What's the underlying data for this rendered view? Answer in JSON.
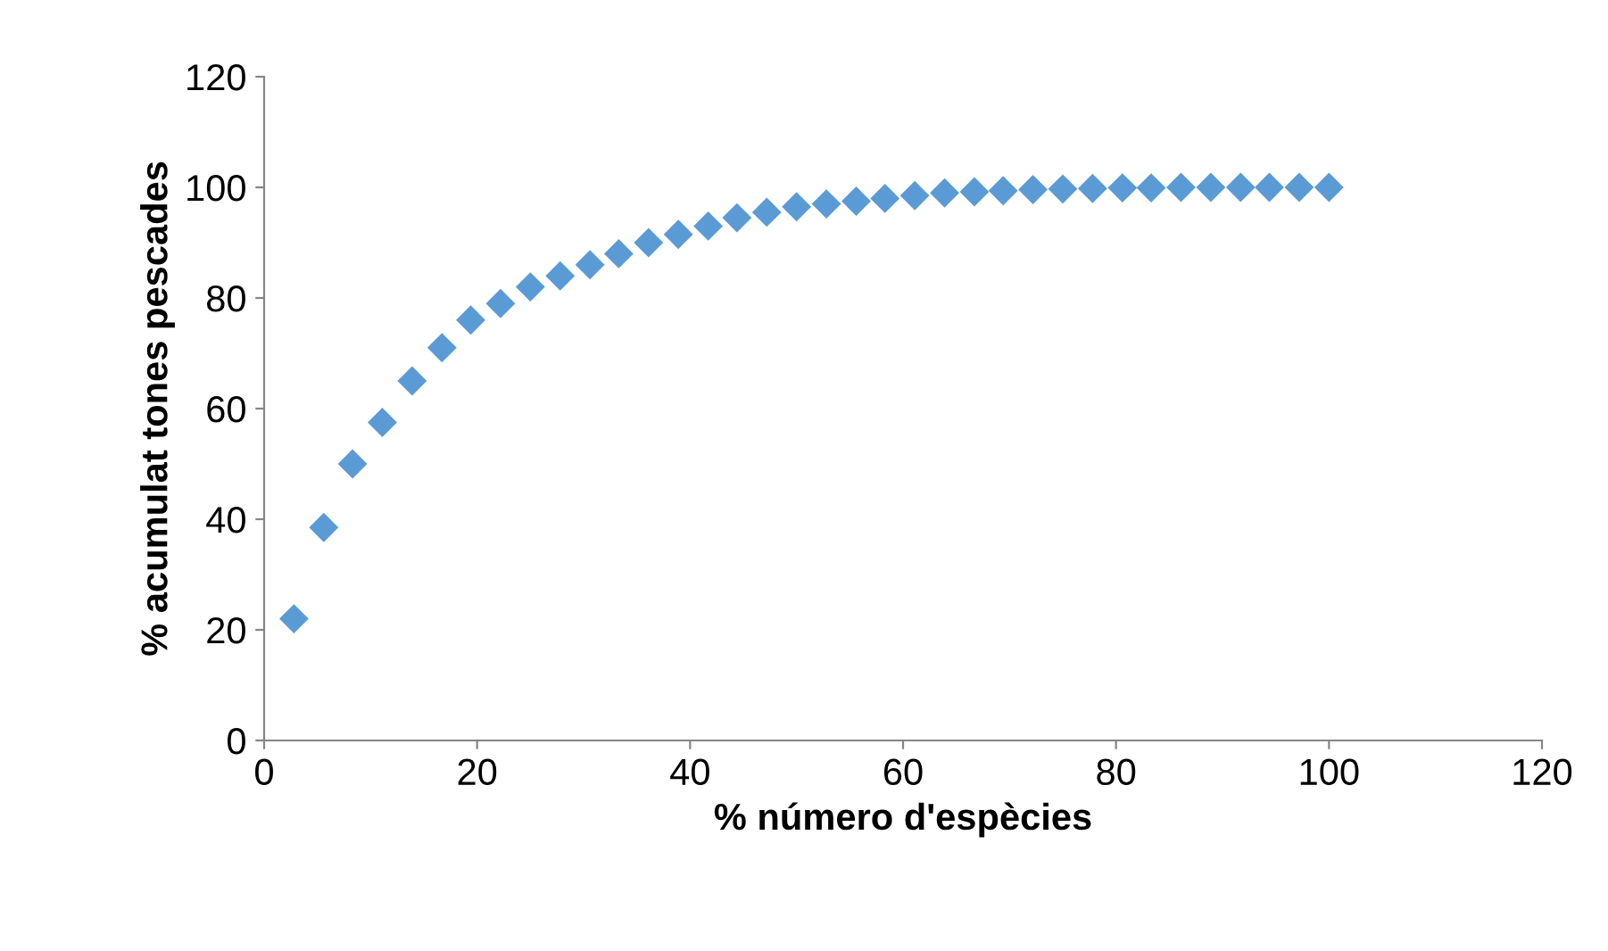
{
  "chart_data": {
    "type": "scatter",
    "xlabel": "% número d'espècies",
    "ylabel": "% acumulat tones pescades",
    "x": [
      2.8,
      5.6,
      8.3,
      11.1,
      13.9,
      16.7,
      19.4,
      22.2,
      25,
      27.8,
      30.6,
      33.3,
      36.1,
      38.9,
      41.7,
      44.4,
      47.2,
      50,
      52.8,
      55.6,
      58.3,
      61.1,
      63.9,
      66.7,
      69.4,
      72.2,
      75,
      77.8,
      80.6,
      83.3,
      86.1,
      88.9,
      91.7,
      94.4,
      97.2,
      100
    ],
    "series": [
      {
        "color": "#5b9bd5",
        "values": [
          22,
          38.5,
          50,
          57.5,
          65,
          71,
          76,
          79,
          82,
          84,
          86,
          88,
          90,
          91.5,
          93,
          94.5,
          95.5,
          96.5,
          97,
          97.5,
          98,
          98.5,
          99,
          99.2,
          99.4,
          99.6,
          99.7,
          99.8,
          99.9,
          99.9,
          100,
          100,
          100,
          100,
          100,
          100
        ]
      }
    ],
    "xlim": [
      0,
      120
    ],
    "xticks": [
      0,
      20,
      40,
      60,
      80,
      100,
      120
    ],
    "ylim": [
      0,
      120
    ],
    "yticks": [
      0,
      20,
      40,
      60,
      80,
      100,
      120
    ],
    "marker": "diamond",
    "grid": false,
    "legend": false
  }
}
